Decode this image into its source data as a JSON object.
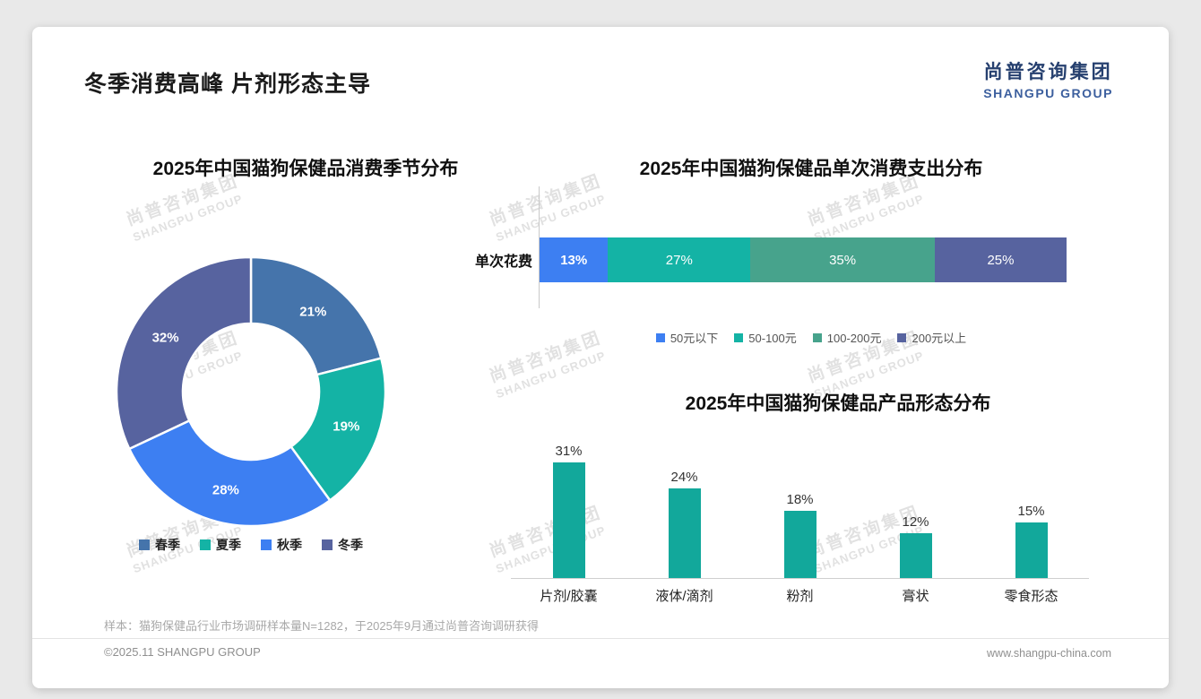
{
  "page": {
    "title": "冬季消费高峰 片剂形态主导",
    "logo": {
      "cn": "尚普咨询集团",
      "en": "SHANGPU GROUP"
    },
    "watermark": {
      "cn": "尚普咨询集团",
      "en": "SHANGPU GROUP"
    },
    "footnote": "样本：猫狗保健品行业市场调研样本量N=1282，于2025年9月通过尚普咨询调研获得",
    "footer": {
      "left": "©2025.11 SHANGPU GROUP",
      "right": "www.shangpu-china.com"
    }
  },
  "chart_data": [
    {
      "type": "pie",
      "subtype": "donut",
      "title": "2025年中国猫狗保健品消费季节分布",
      "labels": [
        "春季",
        "夏季",
        "秋季",
        "冬季"
      ],
      "values": [
        21,
        19,
        28,
        32
      ],
      "value_suffix": "%",
      "colors": [
        "#4574ab",
        "#14b3a5",
        "#3d7ff2",
        "#57639f"
      ],
      "legend_position": "bottom"
    },
    {
      "type": "bar",
      "subtype": "stacked-horizontal",
      "title": "2025年中国猫狗保健品单次消费支出分布",
      "axis_label": "单次花费",
      "value_suffix": "%",
      "series": [
        {
          "name": "50元以下",
          "value": 13,
          "color": "#3d7ff2"
        },
        {
          "name": "50-100元",
          "value": 27,
          "color": "#14b3a5"
        },
        {
          "name": "100-200元",
          "value": 35,
          "color": "#47a38c"
        },
        {
          "name": "200元以上",
          "value": 25,
          "color": "#57639f"
        }
      ],
      "xlim": [
        0,
        100
      ],
      "legend_position": "bottom"
    },
    {
      "type": "bar",
      "subtype": "vertical",
      "title": "2025年中国猫狗保健品产品形态分布",
      "categories": [
        "片剂/胶囊",
        "液体/滴剂",
        "粉剂",
        "膏状",
        "零食形态"
      ],
      "values": [
        31,
        24,
        18,
        12,
        15
      ],
      "value_suffix": "%",
      "bar_color": "#12a89b",
      "grid": false
    }
  ]
}
